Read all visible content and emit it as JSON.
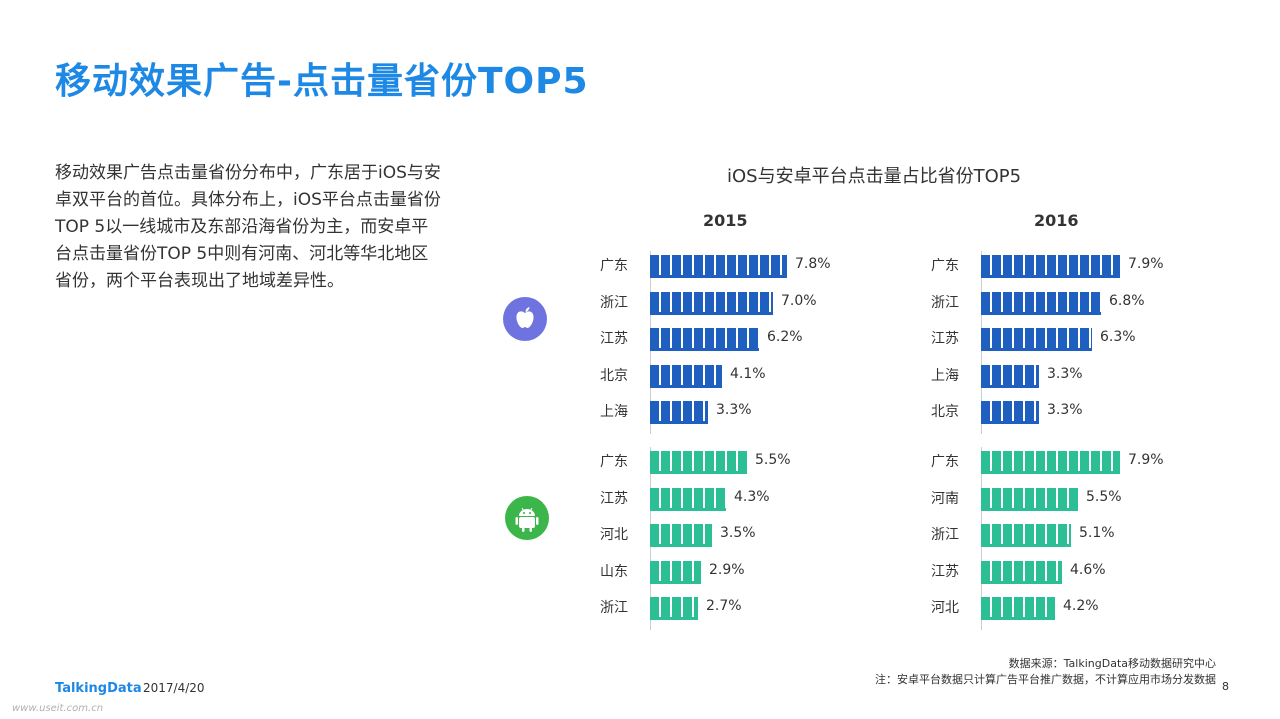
{
  "page": {
    "title": "移动效果广告-点击量省份TOP5",
    "description": "移动效果广告点击量省份分布中，广东居于iOS与安卓双平台的首位。具体分布上，iOS平台点击量省份TOP 5以一线城市及东部沿海省份为主，而安卓平台点击量省份TOP 5中则有河南、河北等华北地区省份，两个平台表现出了地域差异性。"
  },
  "chart_data": {
    "type": "bar",
    "title": "iOS与安卓平台点击量占比省份TOP5",
    "years": [
      "2015",
      "2016"
    ],
    "panels": [
      {
        "year": "2015",
        "platform": "ios",
        "categories": [
          "广东",
          "浙江",
          "江苏",
          "北京",
          "上海"
        ],
        "values": [
          7.8,
          7.0,
          6.2,
          4.1,
          3.3
        ],
        "labels": [
          "7.8%",
          "7.0%",
          "6.2%",
          "4.1%",
          "3.3%"
        ]
      },
      {
        "year": "2016",
        "platform": "ios",
        "categories": [
          "广东",
          "浙江",
          "江苏",
          "上海",
          "北京"
        ],
        "values": [
          7.9,
          6.8,
          6.3,
          3.3,
          3.3
        ],
        "labels": [
          "7.9%",
          "6.8%",
          "6.3%",
          "3.3%",
          "3.3%"
        ]
      },
      {
        "year": "2015",
        "platform": "android",
        "categories": [
          "广东",
          "江苏",
          "河北",
          "山东",
          "浙江"
        ],
        "values": [
          5.5,
          4.3,
          3.5,
          2.9,
          2.7
        ],
        "labels": [
          "5.5%",
          "4.3%",
          "3.5%",
          "2.9%",
          "2.7%"
        ]
      },
      {
        "year": "2016",
        "platform": "android",
        "categories": [
          "广东",
          "河南",
          "浙江",
          "江苏",
          "河北"
        ],
        "values": [
          7.9,
          5.5,
          5.1,
          4.6,
          4.2
        ],
        "labels": [
          "7.9%",
          "5.5%",
          "5.1%",
          "4.6%",
          "4.2%"
        ]
      }
    ],
    "colors": {
      "ios": "#1f5fbf",
      "android": "#2cbf96"
    }
  },
  "footer": {
    "source": "数据来源：TalkingData移动数据研究中心",
    "note": "注：安卓平台数据只计算广告平台推广数据，不计算应用市场分发数据",
    "logo": "TalkingData",
    "date": "2017/4/20",
    "page_number": "8",
    "watermark": "www.useit.com.cn"
  },
  "icons": {
    "ios": "apple-icon",
    "android": "android-icon"
  }
}
